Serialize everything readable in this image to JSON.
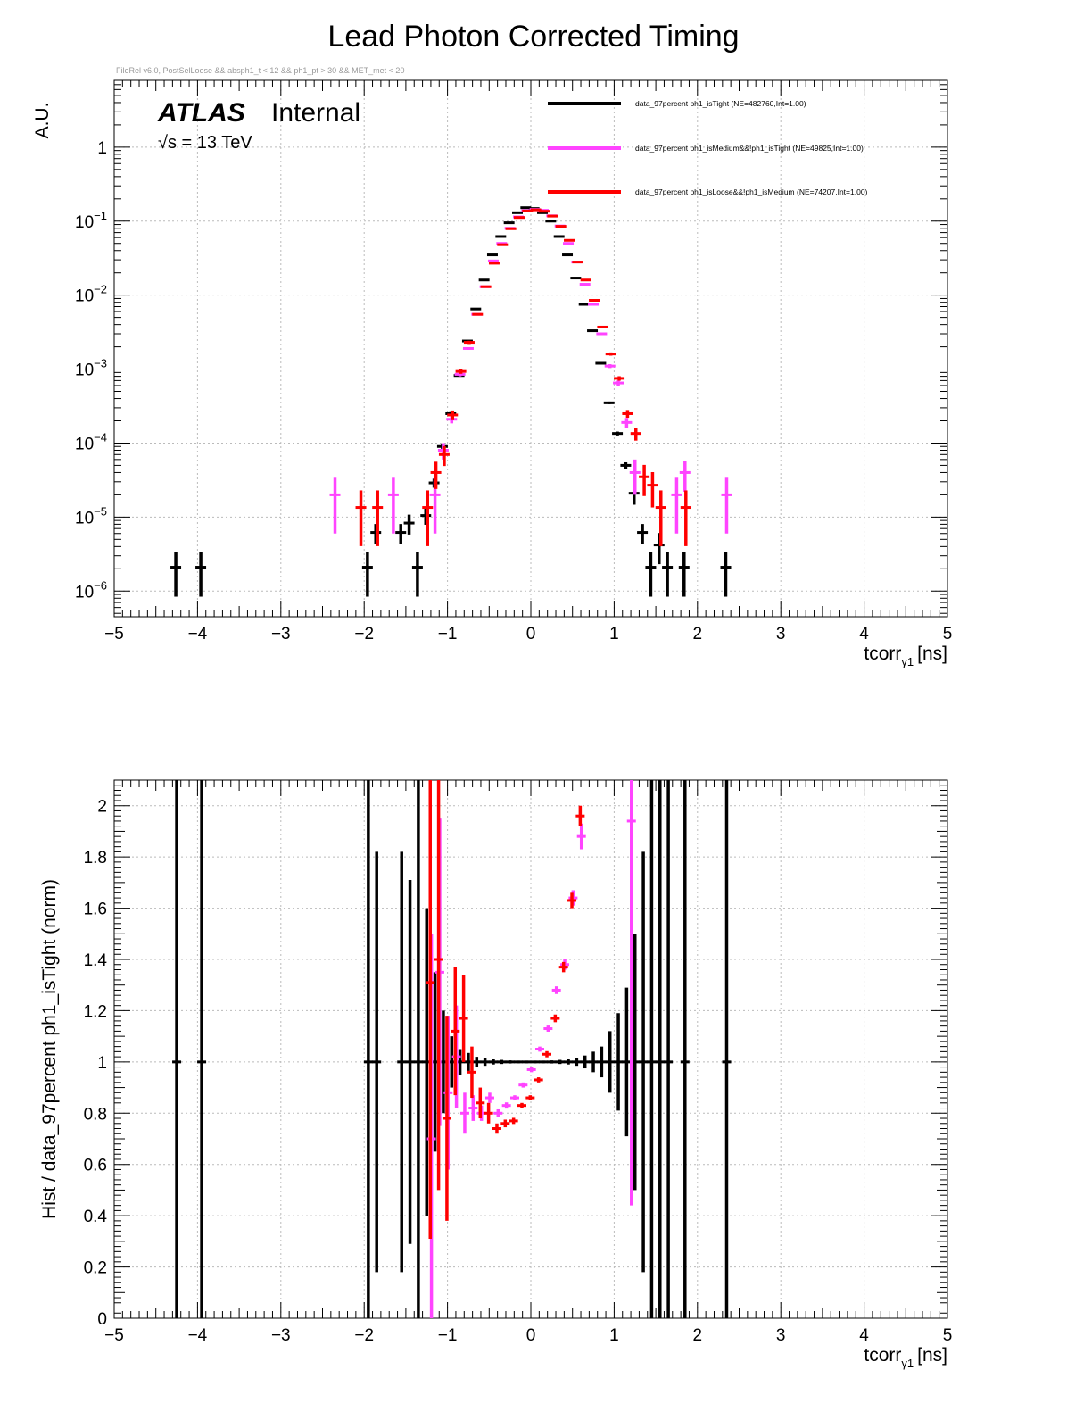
{
  "title": "Lead Photon Corrected Timing",
  "cut_text": "FileRel v6.0, PostSelLoose &&  absph1_t < 12 && ph1_pt > 30 && MET_met < 20",
  "atlas_label": "ATLAS",
  "atlas_status": "Internal",
  "energy_label": "√s = 13 TeV",
  "colors": {
    "tight": "#000000",
    "medium": "#ff44ff",
    "loose": "#ff0000",
    "grid": "#bbbbbb"
  },
  "chart_data": [
    {
      "type": "scatter",
      "name": "top",
      "title": "Lead Photon Corrected Timing",
      "ylabel": "A.U.",
      "xlabel_main": "tcorr",
      "xlabel_sub": "γ1",
      "xlabel_unit": "[ns]",
      "xlim": [
        -5,
        5
      ],
      "ylim": [
        4.5e-07,
        8
      ],
      "yscale": "log",
      "x_ticks": [
        "−5",
        "−4",
        "−3",
        "−2",
        "−1",
        "0",
        "1",
        "2",
        "3",
        "4",
        "5"
      ],
      "y_ticks": [
        {
          "base": "10",
          "exp": "−6"
        },
        {
          "base": "10",
          "exp": "−5"
        },
        {
          "base": "10",
          "exp": "−4"
        },
        {
          "base": "10",
          "exp": "−3"
        },
        {
          "base": "10",
          "exp": "−2"
        },
        {
          "base": "10",
          "exp": "−1"
        },
        {
          "base": "1",
          "exp": ""
        }
      ],
      "legend_position": "top-right",
      "series": [
        {
          "name": "data_97percent  ph1_isTight (NE=482760,Int=1.00)",
          "color_key": "tight",
          "points": [
            [
              -4.25,
              2.1e-06,
              0.6
            ],
            [
              -3.95,
              2.1e-06,
              0.6
            ],
            [
              -1.95,
              2.1e-06,
              0.6
            ],
            [
              -1.85,
              6.2e-06,
              0.3
            ],
            [
              -1.55,
              6.2e-06,
              0.3
            ],
            [
              -1.45,
              8.3e-06,
              0.3
            ],
            [
              -1.35,
              2.1e-06,
              0.6
            ],
            [
              -1.25,
              1.05e-05,
              0.25
            ],
            [
              -1.15,
              2.9e-05,
              0.14
            ],
            [
              -1.05,
              9e-05,
              0.09
            ],
            [
              -0.95,
              0.00025,
              0.05
            ],
            [
              -0.85,
              0.00082,
              0.03
            ],
            [
              -0.75,
              0.0024,
              0.02
            ],
            [
              -0.65,
              0.0065,
              0.01
            ],
            [
              -0.55,
              0.016,
              0.01
            ],
            [
              -0.45,
              0.035,
              0.01
            ],
            [
              -0.35,
              0.062,
              0.01
            ],
            [
              -0.25,
              0.095,
              0.01
            ],
            [
              -0.15,
              0.13,
              0.01
            ],
            [
              -0.05,
              0.152,
              0.01
            ],
            [
              0.05,
              0.148,
              0.01
            ],
            [
              0.15,
              0.13,
              0.01
            ],
            [
              0.25,
              0.1,
              0.01
            ],
            [
              0.35,
              0.062,
              0.01
            ],
            [
              0.45,
              0.035,
              0.01
            ],
            [
              0.55,
              0.017,
              0.01
            ],
            [
              0.65,
              0.0075,
              0.01
            ],
            [
              0.75,
              0.0033,
              0.02
            ],
            [
              0.85,
              0.0012,
              0.02
            ],
            [
              0.95,
              0.00035,
              0.04
            ],
            [
              1.05,
              0.000135,
              0.06
            ],
            [
              1.15,
              5e-05,
              0.1
            ],
            [
              1.25,
              2.1e-05,
              0.3
            ],
            [
              1.35,
              6.2e-06,
              0.3
            ],
            [
              1.45,
              2.1e-06,
              0.6
            ],
            [
              1.55,
              4.2e-06,
              0.45
            ],
            [
              1.65,
              2.1e-06,
              0.6
            ],
            [
              1.85,
              2.1e-06,
              0.6
            ],
            [
              2.35,
              2.1e-06,
              0.6
            ]
          ]
        },
        {
          "name": "data_97percent  ph1_isMedium&&!ph1_isTight (NE=49825,Int=1.00)",
          "color_key": "medium",
          "points": [
            [
              -2.35,
              2e-05,
              0.7
            ],
            [
              -1.65,
              2e-05,
              0.7
            ],
            [
              -1.15,
              2e-05,
              0.7
            ],
            [
              -1.05,
              8e-05,
              0.25
            ],
            [
              -0.95,
              0.00021,
              0.12
            ],
            [
              -0.85,
              0.00085,
              0.06
            ],
            [
              -0.75,
              0.0019,
              0.04
            ],
            [
              -0.65,
              0.0055,
              0.03
            ],
            [
              -0.55,
              0.013,
              0.02
            ],
            [
              -0.45,
              0.029,
              0.02
            ],
            [
              -0.35,
              0.05,
              0.015
            ],
            [
              -0.25,
              0.08,
              0.015
            ],
            [
              -0.15,
              0.114,
              0.015
            ],
            [
              -0.05,
              0.139,
              0.015
            ],
            [
              0.05,
              0.144,
              0.015
            ],
            [
              0.15,
              0.14,
              0.015
            ],
            [
              0.25,
              0.118,
              0.015
            ],
            [
              0.35,
              0.086,
              0.015
            ],
            [
              0.45,
              0.05,
              0.02
            ],
            [
              0.55,
              0.028,
              0.02
            ],
            [
              0.65,
              0.014,
              0.02
            ],
            [
              0.75,
              0.0075,
              0.03
            ],
            [
              0.85,
              0.003,
              0.04
            ],
            [
              0.95,
              0.0011,
              0.06
            ],
            [
              1.05,
              0.00065,
              0.08
            ],
            [
              1.15,
              0.00019,
              0.15
            ],
            [
              1.25,
              4e-05,
              0.5
            ],
            [
              1.75,
              2e-05,
              0.7
            ],
            [
              1.85,
              4e-05,
              0.45
            ],
            [
              2.35,
              2e-05,
              0.7
            ]
          ]
        },
        {
          "name": "data_97percent  ph1_isLoose&&!ph1_isMedium (NE=74207,Int=1.00)",
          "color_key": "loose",
          "points": [
            [
              -2.05,
              1.35e-05,
              0.7
            ],
            [
              -1.85,
              1.35e-05,
              0.7
            ],
            [
              -1.25,
              1.35e-05,
              0.7
            ],
            [
              -1.15,
              4e-05,
              0.4
            ],
            [
              -1.05,
              7e-05,
              0.3
            ],
            [
              -0.95,
              0.00024,
              0.15
            ],
            [
              -0.85,
              0.00093,
              0.07
            ],
            [
              -0.75,
              0.0023,
              0.05
            ],
            [
              -0.65,
              0.0055,
              0.03
            ],
            [
              -0.55,
              0.013,
              0.02
            ],
            [
              -0.45,
              0.027,
              0.015
            ],
            [
              -0.35,
              0.048,
              0.015
            ],
            [
              -0.25,
              0.079,
              0.015
            ],
            [
              -0.15,
              0.112,
              0.015
            ],
            [
              -0.05,
              0.137,
              0.015
            ],
            [
              0.05,
              0.142,
              0.015
            ],
            [
              0.15,
              0.136,
              0.015
            ],
            [
              0.25,
              0.117,
              0.015
            ],
            [
              0.35,
              0.085,
              0.015
            ],
            [
              0.45,
              0.055,
              0.02
            ],
            [
              0.55,
              0.028,
              0.02
            ],
            [
              0.65,
              0.016,
              0.02
            ],
            [
              0.75,
              0.0085,
              0.03
            ],
            [
              0.85,
              0.0037,
              0.04
            ],
            [
              0.95,
              0.0016,
              0.05
            ],
            [
              1.05,
              0.00075,
              0.07
            ],
            [
              1.15,
              0.00025,
              0.12
            ],
            [
              1.25,
              0.000135,
              0.2
            ],
            [
              1.35,
              3.5e-05,
              0.45
            ],
            [
              1.45,
              2.7e-05,
              0.5
            ],
            [
              1.55,
              1.35e-05,
              0.7
            ],
            [
              1.85,
              1.35e-05,
              0.7
            ]
          ]
        }
      ]
    },
    {
      "type": "scatter",
      "name": "ratio",
      "ylabel": "Hist / data_97percent  ph1_isTight (norm)",
      "xlabel_main": "tcorr",
      "xlabel_sub": "γ1",
      "xlabel_unit": "[ns]",
      "xlim": [
        -5,
        5
      ],
      "ylim": [
        0,
        2.1
      ],
      "yscale": "linear",
      "x_ticks": [
        "−5",
        "−4",
        "−3",
        "−2",
        "−1",
        "0",
        "1",
        "2",
        "3",
        "4",
        "5"
      ],
      "y_ticks": [
        "0",
        "0.2",
        "0.4",
        "0.6",
        "0.8",
        "1",
        "1.2",
        "1.4",
        "1.6",
        "1.8",
        "2"
      ],
      "series": [
        {
          "name": "tight_ratio",
          "color_key": "tight",
          "points": [
            [
              -4.25,
              1.0,
              1.5
            ],
            [
              -3.95,
              1.0,
              1.5
            ],
            [
              -1.95,
              1.0,
              1.5
            ],
            [
              -1.85,
              1.0,
              0.82
            ],
            [
              -1.55,
              1.0,
              0.82
            ],
            [
              -1.45,
              1.0,
              0.71
            ],
            [
              -1.35,
              1.0,
              1.5
            ],
            [
              -1.25,
              1.0,
              0.6
            ],
            [
              -1.15,
              1.0,
              0.35
            ],
            [
              -1.05,
              1.0,
              0.2
            ],
            [
              -0.95,
              1.0,
              0.1
            ],
            [
              -0.85,
              1.0,
              0.05
            ],
            [
              -0.75,
              1.0,
              0.035
            ],
            [
              -0.65,
              1.0,
              0.02
            ],
            [
              -0.55,
              1.0,
              0.015
            ],
            [
              -0.45,
              1.0,
              0.01
            ],
            [
              -0.35,
              1.0,
              0.008
            ],
            [
              -0.25,
              1.0,
              0.006
            ],
            [
              -0.15,
              1.0,
              0.005
            ],
            [
              -0.05,
              1.0,
              0.005
            ],
            [
              0.05,
              1.0,
              0.005
            ],
            [
              0.15,
              1.0,
              0.005
            ],
            [
              0.25,
              1.0,
              0.006
            ],
            [
              0.35,
              1.0,
              0.008
            ],
            [
              0.45,
              1.0,
              0.01
            ],
            [
              0.55,
              1.0,
              0.015
            ],
            [
              0.65,
              1.0,
              0.025
            ],
            [
              0.75,
              1.0,
              0.04
            ],
            [
              0.85,
              1.0,
              0.06
            ],
            [
              0.95,
              1.0,
              0.12
            ],
            [
              1.05,
              1.0,
              0.19
            ],
            [
              1.15,
              1.0,
              0.29
            ],
            [
              1.25,
              1.0,
              0.5
            ],
            [
              1.35,
              1.0,
              0.82
            ],
            [
              1.45,
              1.0,
              1.5
            ],
            [
              1.55,
              1.0,
              1.1
            ],
            [
              1.65,
              1.0,
              1.5
            ],
            [
              1.85,
              1.0,
              1.5
            ],
            [
              2.35,
              1.0,
              1.5
            ]
          ]
        },
        {
          "name": "medium_ratio",
          "color_key": "medium",
          "points": [
            [
              -1.15,
              0.7,
              0.8
            ],
            [
              -1.05,
              1.35,
              0.6
            ],
            [
              -0.95,
              0.88,
              0.3
            ],
            [
              -0.85,
              1.02,
              0.2
            ],
            [
              -0.75,
              0.8,
              0.08
            ],
            [
              -0.65,
              0.82,
              0.05
            ],
            [
              -0.55,
              0.8,
              0.03
            ],
            [
              -0.45,
              0.86,
              0.02
            ],
            [
              -0.35,
              0.8,
              0.015
            ],
            [
              -0.25,
              0.83,
              0.012
            ],
            [
              -0.15,
              0.86,
              0.01
            ],
            [
              -0.05,
              0.91,
              0.01
            ],
            [
              0.05,
              0.97,
              0.01
            ],
            [
              0.15,
              1.05,
              0.01
            ],
            [
              0.25,
              1.13,
              0.012
            ],
            [
              0.35,
              1.28,
              0.015
            ],
            [
              0.45,
              1.38,
              0.02
            ],
            [
              0.55,
              1.64,
              0.03
            ],
            [
              0.65,
              1.88,
              0.05
            ],
            [
              1.25,
              1.94,
              1.5
            ]
          ]
        },
        {
          "name": "loose_ratio",
          "color_key": "loose",
          "points": [
            [
              -1.25,
              1.31,
              1.0
            ],
            [
              -1.15,
              1.4,
              0.9
            ],
            [
              -1.05,
              0.78,
              0.4
            ],
            [
              -0.95,
              1.12,
              0.25
            ],
            [
              -0.85,
              1.17,
              0.17
            ],
            [
              -0.75,
              0.96,
              0.1
            ],
            [
              -0.65,
              0.84,
              0.06
            ],
            [
              -0.55,
              0.8,
              0.04
            ],
            [
              -0.45,
              0.74,
              0.02
            ],
            [
              -0.35,
              0.76,
              0.015
            ],
            [
              -0.25,
              0.77,
              0.012
            ],
            [
              -0.15,
              0.83,
              0.01
            ],
            [
              -0.05,
              0.86,
              0.01
            ],
            [
              0.05,
              0.93,
              0.01
            ],
            [
              0.15,
              1.03,
              0.012
            ],
            [
              0.25,
              1.17,
              0.015
            ],
            [
              0.35,
              1.37,
              0.02
            ],
            [
              0.45,
              1.63,
              0.03
            ],
            [
              0.55,
              1.96,
              0.04
            ]
          ]
        }
      ]
    }
  ]
}
